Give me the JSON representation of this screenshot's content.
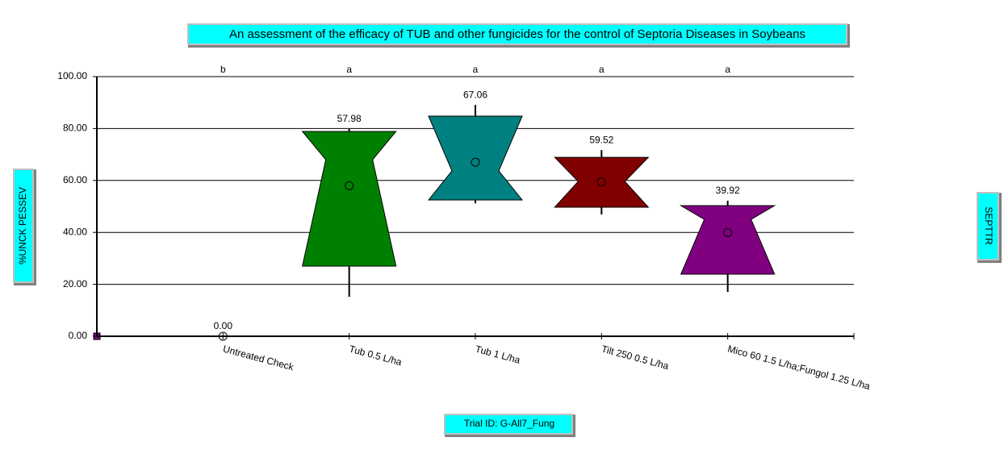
{
  "chart_data": {
    "type": "box",
    "title": "An assessment of the efficacy of TUB and other fungicides for the control of Septoria Diseases in Soybeans",
    "y_label": "%UNCK PESSEV",
    "right_label": "SEPTTR",
    "footer": "Trial ID: G-All7_Fung",
    "categories": [
      "Untreated Check",
      "Tub 0.5 L/ha",
      "Tub 1 L/ha",
      "Tilt 250 0.5 L/ha",
      "Mico 60 1.5 L/ha;Fungol 1.25 L/ha"
    ],
    "letters": [
      "b",
      "a",
      "a",
      "a",
      "a"
    ],
    "colors": [
      "#000000",
      "#008000",
      "#008080",
      "#800000",
      "#800080"
    ],
    "q1": [
      0,
      27.0,
      52.5,
      49.7,
      23.9
    ],
    "median": [
      0,
      68.0,
      63.7,
      59.6,
      45.0
    ],
    "q3": [
      0,
      78.9,
      84.8,
      68.9,
      50.3
    ],
    "whisker_low": [
      0,
      15.2,
      51.2,
      46.9,
      17.1
    ],
    "whisker_high": [
      0,
      79.8,
      89.1,
      71.7,
      52.2
    ],
    "means": [
      0,
      57.98,
      67.06,
      59.52,
      39.92
    ],
    "value_labels": [
      "0.00",
      "57.98",
      "67.06",
      "59.52",
      "39.92"
    ],
    "ylim": [
      0,
      100
    ],
    "yticks": [
      {
        "value": 0,
        "label": "0.00"
      },
      {
        "value": 20,
        "label": "20.00"
      },
      {
        "value": 40,
        "label": "40.00"
      },
      {
        "value": 60,
        "label": "60.00"
      },
      {
        "value": 80,
        "label": "80.00"
      },
      {
        "value": 100,
        "label": "100.00"
      }
    ],
    "grid": true
  }
}
